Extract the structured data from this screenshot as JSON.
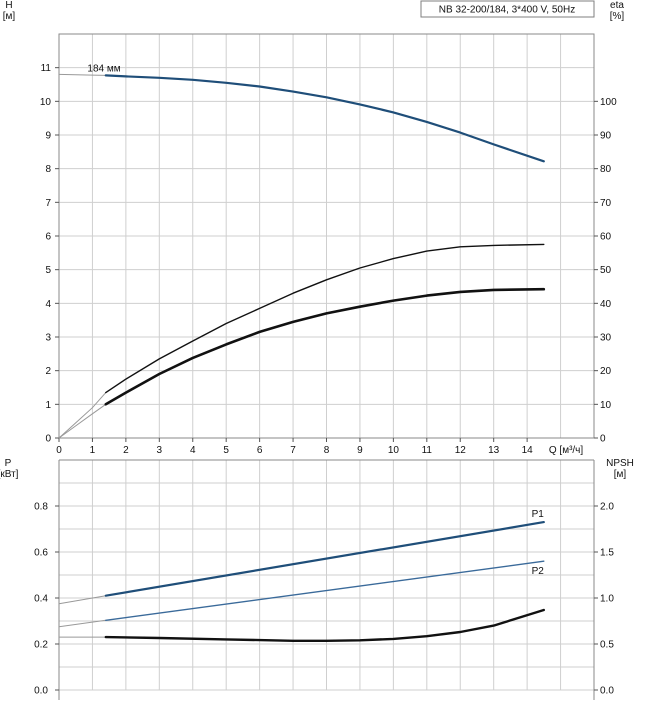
{
  "chart_data": [
    {
      "type": "line",
      "title": "NB 32-200/184, 3*400 V, 50Hz",
      "xlabel": "Q [м³/ч]",
      "x_ticks": [
        "0",
        "1",
        "2",
        "3",
        "4",
        "5",
        "6",
        "7",
        "8",
        "9",
        "10",
        "11",
        "12",
        "13",
        "14"
      ],
      "xlim": [
        0,
        16
      ],
      "ylabel_left": "H\n[м]",
      "ylim_left": [
        0,
        12
      ],
      "y_ticks_left": [
        "0",
        "1",
        "2",
        "3",
        "4",
        "5",
        "6",
        "7",
        "8",
        "9",
        "10",
        "11"
      ],
      "ylabel_right": "eta\n[%]",
      "ylim_right": [
        0,
        120
      ],
      "y_ticks_right": [
        "0",
        "10",
        "20",
        "30",
        "40",
        "50",
        "60",
        "70",
        "80",
        "90",
        "100"
      ],
      "grid": true,
      "series": [
        {
          "name": "184 мм",
          "axis": "left",
          "color": "#1f4e79",
          "x": [
            1.4,
            2,
            3,
            4,
            5,
            6,
            7,
            8,
            9,
            10,
            11,
            12,
            13,
            14.5
          ],
          "y": [
            10.77,
            10.74,
            10.7,
            10.64,
            10.55,
            10.44,
            10.29,
            10.12,
            9.91,
            9.67,
            9.39,
            9.07,
            8.72,
            8.22
          ],
          "ext_x": [
            0,
            0.5,
            1,
            1.4
          ],
          "ext_y": [
            10.8,
            10.79,
            10.78,
            10.77
          ]
        },
        {
          "axis": "right",
          "color": "#111111",
          "x": [
            1.4,
            2,
            3,
            4,
            5,
            6,
            7,
            8,
            9,
            10,
            11,
            12,
            13,
            14.5
          ],
          "y": [
            13.5,
            17.5,
            23.5,
            28.8,
            34,
            38.5,
            43,
            47,
            50.5,
            53.3,
            55.5,
            56.8,
            57.2,
            57.5
          ],
          "ext_x": [
            0,
            0.5,
            1,
            1.4
          ],
          "ext_y": [
            0,
            4.5,
            9,
            13.5
          ]
        },
        {
          "axis": "right",
          "color": "#111111",
          "x": [
            1.4,
            2,
            3,
            4,
            5,
            6,
            7,
            8,
            9,
            10,
            11,
            12,
            13,
            14.5
          ],
          "y": [
            10,
            13.5,
            19,
            23.8,
            27.8,
            31.5,
            34.5,
            37,
            39,
            40.8,
            42.3,
            43.4,
            44,
            44.2
          ],
          "ext_x": [
            0,
            0.5,
            1,
            1.4
          ],
          "ext_y": [
            0,
            3.6,
            7.2,
            10
          ]
        }
      ]
    },
    {
      "type": "line",
      "ylabel_left": "P\n[кВт]",
      "ylim_left": [
        0,
        1
      ],
      "y_ticks_left": [
        "0.0",
        "0.2",
        "0.4",
        "0.6",
        "0.8"
      ],
      "ylabel_right": "NPSH\n[м]",
      "ylim_right": [
        0,
        2.5
      ],
      "y_ticks_right": [
        "0.0",
        "0.5",
        "1.0",
        "1.5",
        "2.0"
      ],
      "grid": true,
      "series": [
        {
          "name": "P1",
          "axis": "left",
          "color": "#1f4e79",
          "x": [
            1.4,
            14.5
          ],
          "y": [
            0.41,
            0.73
          ],
          "ext_x": [
            0,
            1.4
          ],
          "ext_y": [
            0.375,
            0.41
          ]
        },
        {
          "name": "P2",
          "axis": "left",
          "color": "#3a6a9a",
          "x": [
            1.4,
            14.5
          ],
          "y": [
            0.303,
            0.56
          ],
          "ext_x": [
            0,
            1.4
          ],
          "ext_y": [
            0.275,
            0.303
          ]
        },
        {
          "axis": "right",
          "color": "#111111",
          "x": [
            1.4,
            3,
            5,
            7,
            8,
            9,
            10,
            11,
            12,
            13,
            14.5
          ],
          "y": [
            0.575,
            0.565,
            0.55,
            0.535,
            0.535,
            0.54,
            0.555,
            0.585,
            0.63,
            0.7,
            0.87
          ],
          "ext_x": [
            0,
            1.4
          ],
          "ext_y": [
            0.575,
            0.575
          ]
        }
      ]
    }
  ]
}
